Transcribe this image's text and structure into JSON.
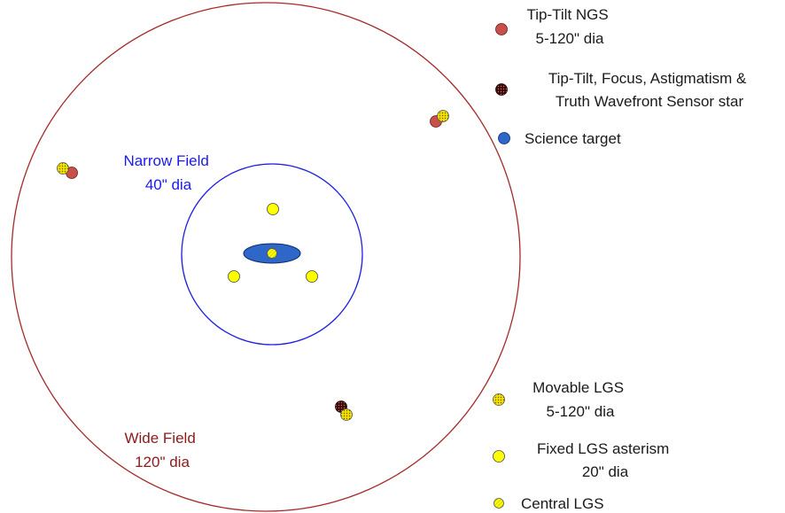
{
  "wide_field": {
    "line1": "Wide Field",
    "line2": "120\" dia",
    "color": "#8b1a1a"
  },
  "narrow_field": {
    "line1": "Narrow Field",
    "line2": "40\" dia",
    "color": "#1a1aee"
  },
  "legend": {
    "tip_tilt_ngs": {
      "line1": "Tip-Tilt NGS",
      "line2": "5-120\" dia",
      "color": "#c8504a"
    },
    "ttfa_truth": {
      "line1": "Tip-Tilt, Focus, Astigmatism &",
      "line2": "Truth Wavefront Sensor star",
      "color": "#5a0a0a"
    },
    "science_target": {
      "line1": "Science target",
      "color": "#2f67c8"
    },
    "movable_lgs": {
      "line1": "Movable LGS",
      "line2": "5-120\" dia",
      "color": "#e6d400"
    },
    "fixed_lgs": {
      "line1": "Fixed LGS asterism",
      "line2": "20\" dia",
      "color": "#ffff00"
    },
    "central_lgs": {
      "line1": "Central LGS",
      "color": "#ffff00"
    }
  }
}
